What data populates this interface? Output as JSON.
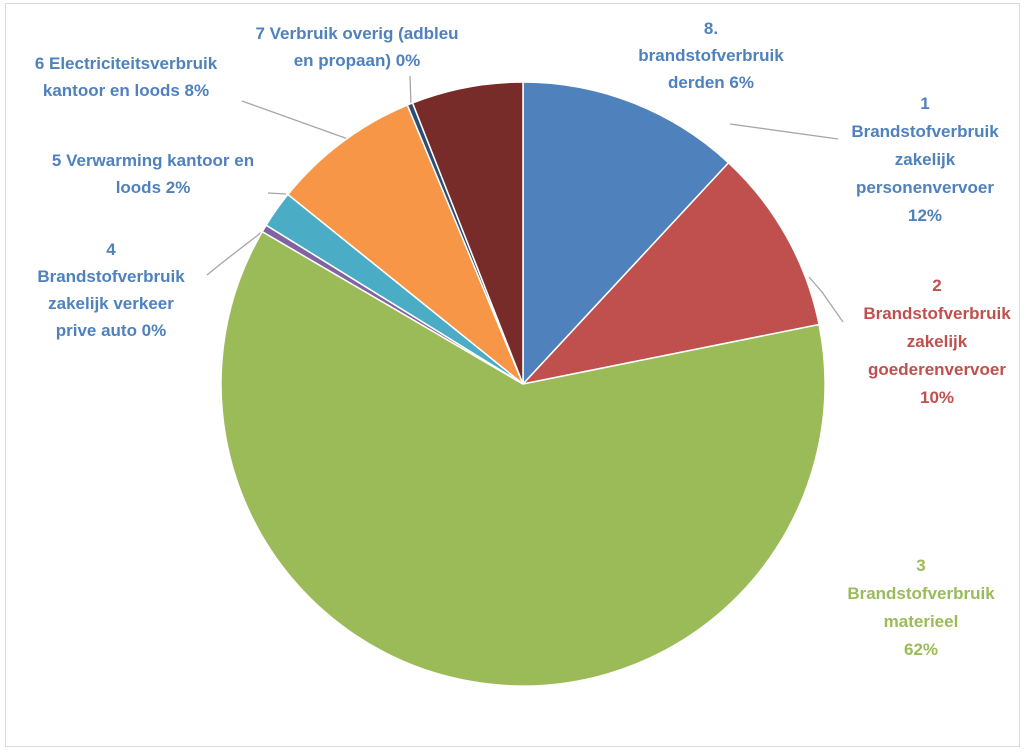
{
  "chart_data": {
    "type": "pie",
    "title": "",
    "start_angle_deg": 0,
    "direction": "clockwise",
    "legend": "none",
    "slices": [
      {
        "name": "1 Brandstofverbruik zakelijk personenvervoer",
        "value": 12,
        "display": [
          "1",
          "Brandstofverbruik",
          "zakelijk",
          "personenvervoer",
          "12%"
        ],
        "color": "#4F81BD",
        "label_color": "#4F81BD"
      },
      {
        "name": "2 Brandstofverbruik zakelijk goederenvervoer",
        "value": 10,
        "display": [
          "2",
          "Brandstofverbruik",
          "zakelijk",
          "goederenvervoer",
          "10%"
        ],
        "color": "#C0504D",
        "label_color": "#C0504D"
      },
      {
        "name": "3 Brandstofverbruik materieel",
        "value": 62,
        "display": [
          "3",
          "Brandstofverbruik",
          "materieel",
          "62%"
        ],
        "color": "#9BBB59",
        "label_color": "#9BBB59"
      },
      {
        "name": "4 Brandstofverbruik zakelijk verkeer prive auto",
        "value": 0.4,
        "display": [
          "4",
          "Brandstofverbruik",
          "zakelijk verkeer",
          "prive auto 0%"
        ],
        "color": "#8064A2",
        "label_color": "#4F81BD"
      },
      {
        "name": "5 Verwarming kantoor en loods",
        "value": 2,
        "display": [
          "5 Verwarming kantoor en",
          "loods 2%"
        ],
        "color": "#4BACC6",
        "label_color": "#4F81BD"
      },
      {
        "name": "6 Electriciteitsverbruik kantoor en loods",
        "value": 8,
        "display": [
          "6 Electriciteitsverbruik",
          "kantoor en loods 8%"
        ],
        "color": "#F79646",
        "label_color": "#4F81BD"
      },
      {
        "name": "7 Verbruik overig (adbleu en propaan)",
        "value": 0.3,
        "display": [
          "7 Verbruik overig (adbleu",
          "en propaan) 0%"
        ],
        "color": "#2C4D75",
        "label_color": "#4F81BD"
      },
      {
        "name": "8. brandstofverbruik derden",
        "value": 6,
        "display": [
          "8.",
          "brandstofverbruik",
          "derden 6%"
        ],
        "color": "#772C2A",
        "label_color": "#4F81BD"
      }
    ]
  }
}
